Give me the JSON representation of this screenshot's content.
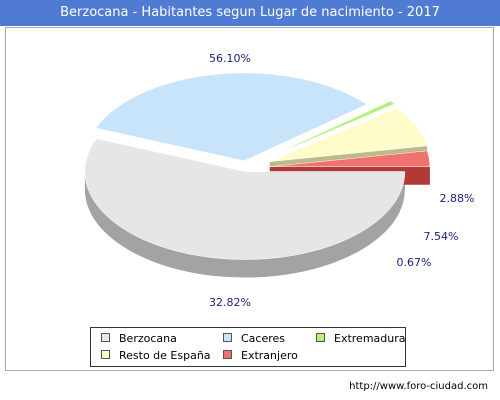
{
  "title": "Berzocana - Habitantes segun Lugar de nacimiento - 2017",
  "source": "http://www.foro-ciudad.com",
  "chart_data": {
    "type": "pie",
    "title": "Berzocana - Habitantes segun Lugar de nacimiento - 2017",
    "slices": [
      {
        "label": "Berzocana",
        "value": 56.1,
        "value_label": "56.10%",
        "color": "#e6e6e6",
        "side_color": "#a3a3a3"
      },
      {
        "label": "Caceres",
        "value": 32.82,
        "value_label": "32.82%",
        "color": "#c8e4fb",
        "side_color": "#7b98b4"
      },
      {
        "label": "Extremadura",
        "value": 0.67,
        "value_label": "0.67%",
        "color": "#b6f07c",
        "side_color": "#70a83a"
      },
      {
        "label": "Resto de España",
        "value": 7.54,
        "value_label": "7.54%",
        "color": "#fffccb",
        "side_color": "#bdb98a"
      },
      {
        "label": "Extranjero",
        "value": 2.88,
        "value_label": "2.88%",
        "color": "#f0726e",
        "side_color": "#b03a36"
      }
    ],
    "legend_position": "bottom"
  }
}
